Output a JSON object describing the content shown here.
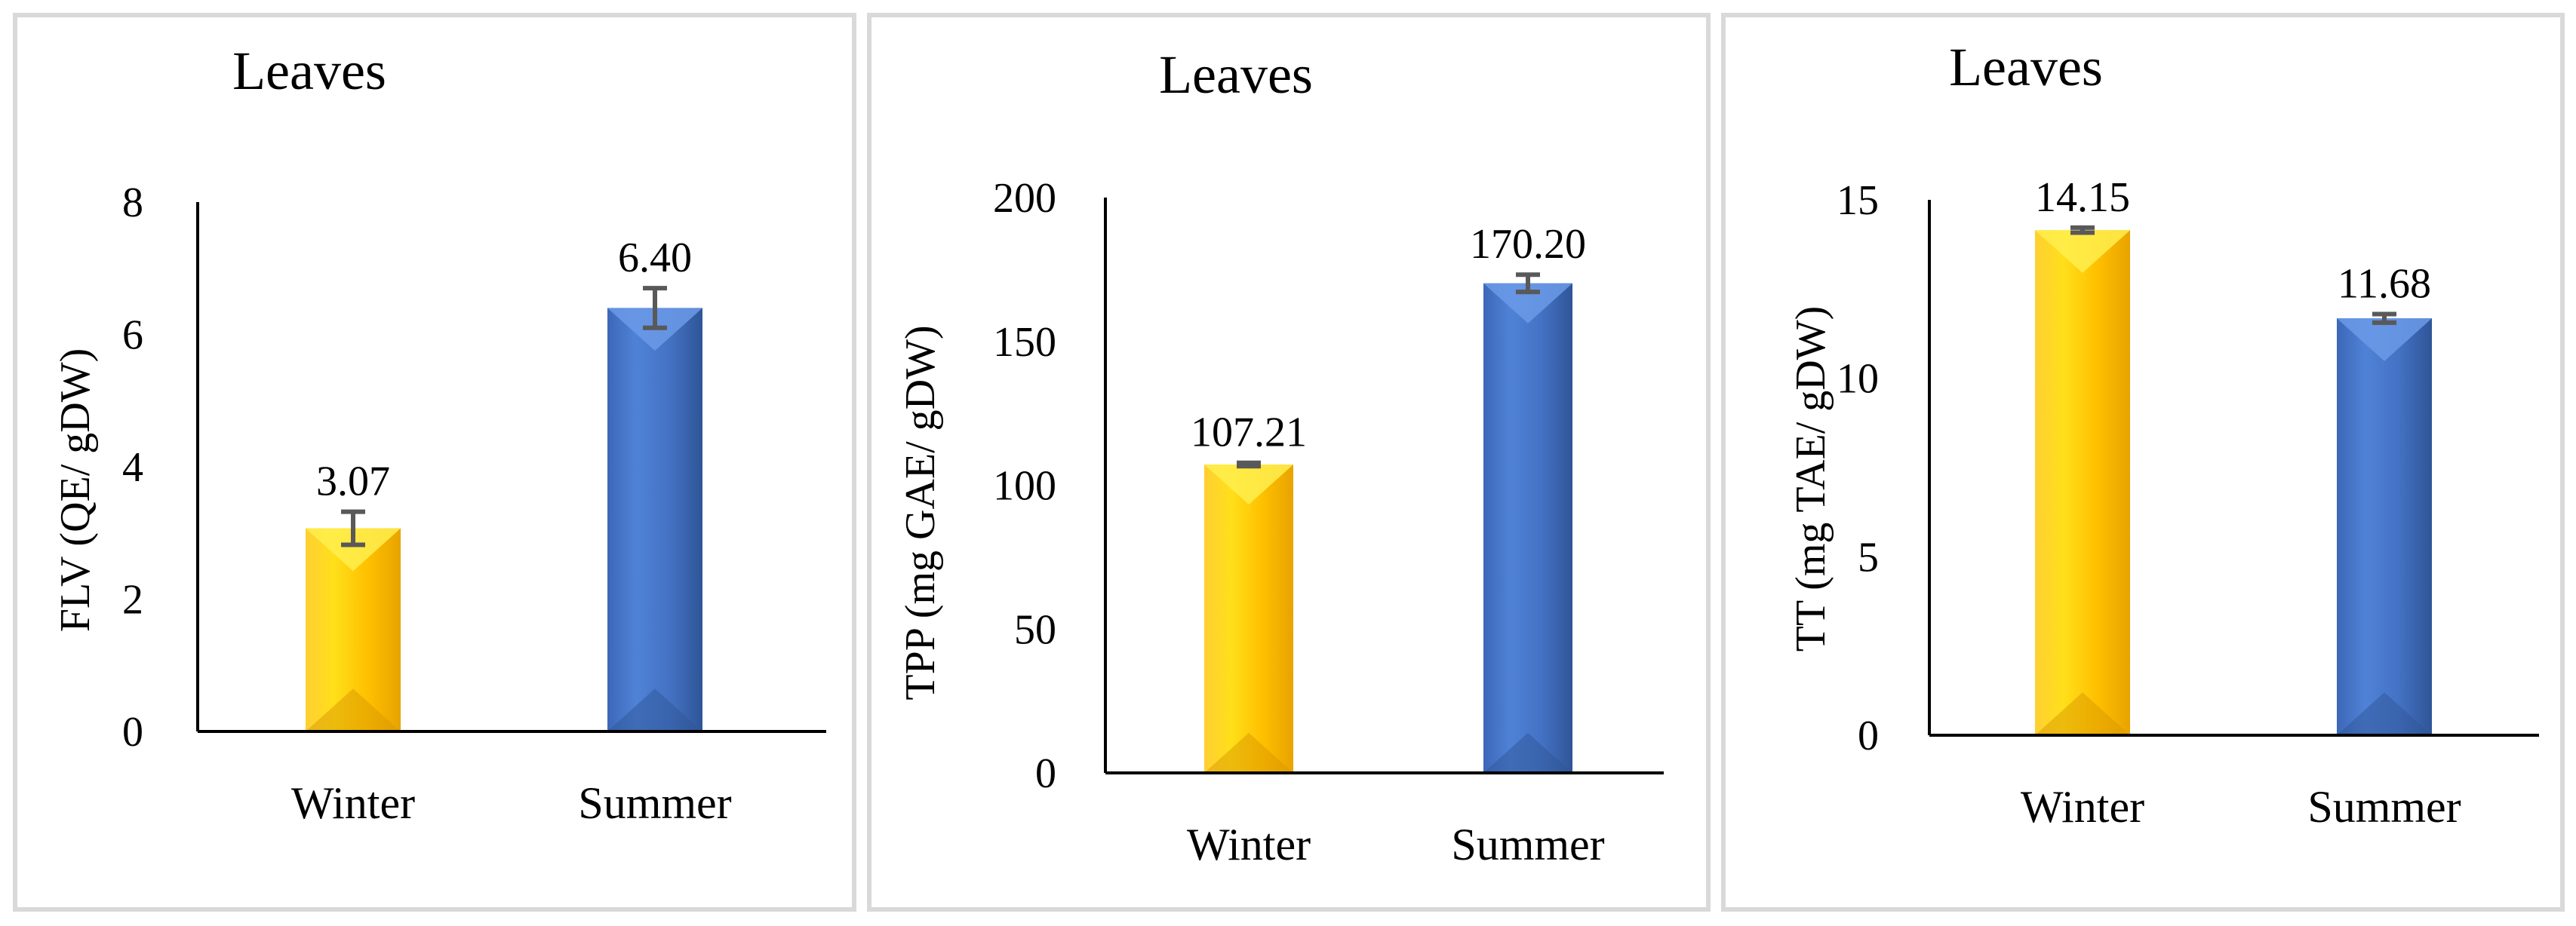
{
  "colors": {
    "winter": "#ffc000",
    "summer": "#4472c4"
  },
  "chart_data": [
    {
      "type": "bar",
      "title": "Leaves",
      "ylabel": "FLV (QE/ gDW)",
      "xlabel": "",
      "categories": [
        "Winter",
        "Summer"
      ],
      "values": [
        3.07,
        6.4
      ],
      "errors": [
        0.25,
        0.3
      ],
      "value_labels": [
        "3.07",
        "6.40"
      ],
      "ylim": [
        0,
        8
      ],
      "yticks": [
        0,
        2,
        4,
        6,
        8
      ],
      "ytick_labels": [
        "0",
        "2",
        "4",
        "6",
        "8"
      ],
      "grid": false,
      "legend": "none"
    },
    {
      "type": "bar",
      "title": "Leaves",
      "ylabel": "TPP (mg GAE/ gDW)",
      "xlabel": "",
      "categories": [
        "Winter",
        "Summer"
      ],
      "values": [
        107.21,
        170.2
      ],
      "errors": [
        0.6,
        3.0
      ],
      "value_labels": [
        "107.21",
        "170.20"
      ],
      "ylim": [
        0,
        200
      ],
      "yticks": [
        0,
        50,
        100,
        150,
        200
      ],
      "ytick_labels": [
        "0",
        "50",
        "100",
        "150",
        "200"
      ],
      "grid": false,
      "legend": "none"
    },
    {
      "type": "bar",
      "title": "Leaves",
      "ylabel": "TT (mg TAE/ gDW)",
      "xlabel": "",
      "categories": [
        "Winter",
        "Summer"
      ],
      "values": [
        14.15,
        11.68
      ],
      "errors": [
        0.07,
        0.12
      ],
      "value_labels": [
        "14.15",
        "11.68"
      ],
      "ylim": [
        0,
        15
      ],
      "yticks": [
        0,
        5,
        10,
        15
      ],
      "ytick_labels": [
        "0",
        "5",
        "10",
        "15"
      ],
      "grid": false,
      "legend": "none"
    }
  ]
}
